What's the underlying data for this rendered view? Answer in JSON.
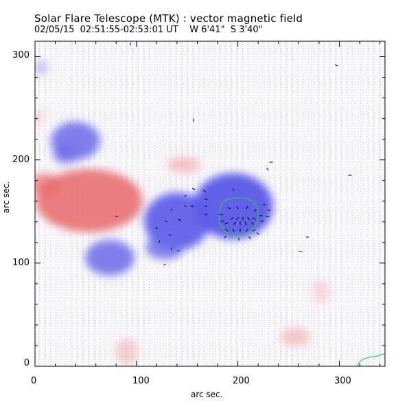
{
  "header": {
    "title": "Solar Flare Telescope (MTK) : vector magnetic field",
    "subtitle": "02/05/15  02:51:55-02:53:01 UT    W 6'41\"  S 3'40\""
  },
  "axes": {
    "xlabel": "arc sec.",
    "ylabel": "arc sec.",
    "xticks": [
      "0",
      "100",
      "200",
      "300"
    ],
    "yticks": [
      "0",
      "100",
      "200",
      "300"
    ],
    "xlim": [
      0,
      345
    ],
    "ylim": [
      0,
      315
    ]
  },
  "colors": {
    "positive_polarity": "#e87272",
    "negative_polarity": "#6a6ae8",
    "contour": "#22cc55",
    "vectors": "#000000"
  }
}
